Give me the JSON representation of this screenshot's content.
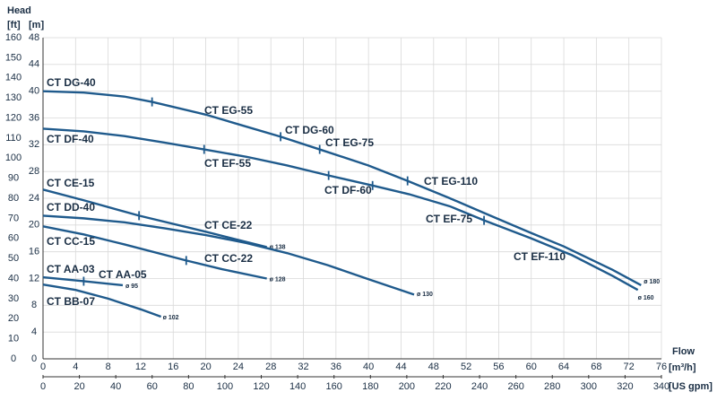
{
  "chart_data": {
    "type": "line",
    "y_label": "Head",
    "y2_unit": "[ft]",
    "y_unit": "[m]",
    "x_label": "Flow",
    "x_unit": "[m³/h]",
    "x2_unit": "[US gpm]",
    "xlim": [
      0,
      76
    ],
    "xticks": [
      0,
      4,
      8,
      12,
      16,
      20,
      24,
      28,
      32,
      36,
      40,
      44,
      48,
      52,
      56,
      60,
      64,
      68,
      72,
      76
    ],
    "x2lim": [
      0,
      340
    ],
    "x2ticks": [
      0,
      20,
      40,
      60,
      80,
      100,
      120,
      140,
      160,
      180,
      200,
      220,
      240,
      260,
      280,
      300,
      320,
      340
    ],
    "ylim": [
      0,
      48
    ],
    "yticks": [
      0,
      4,
      8,
      12,
      16,
      20,
      24,
      28,
      32,
      36,
      40,
      44,
      48
    ],
    "y2lim": [
      0,
      160
    ],
    "y2ticks": [
      0,
      10,
      20,
      30,
      40,
      50,
      60,
      70,
      80,
      90,
      100,
      110,
      120,
      130,
      140,
      150,
      160
    ],
    "grid": true,
    "color": "#1f5a8c",
    "series": [
      {
        "name": "ø 180",
        "x": [
          0,
          5,
          10,
          13.4,
          20,
          25,
          29.2,
          34,
          40,
          44.8,
          50,
          54.2,
          60,
          64,
          70,
          73.5
        ],
        "values": [
          40,
          39.8,
          39.2,
          38.4,
          36.5,
          34.7,
          33.2,
          31.3,
          28.9,
          26.6,
          24,
          21.8,
          18.8,
          16.8,
          13.3,
          11
        ],
        "markers": [
          13.4,
          29.2,
          34,
          44.8
        ]
      },
      {
        "name": "ø 160",
        "x": [
          0,
          5,
          10,
          15,
          19.8,
          25,
          30,
          35.1,
          40.5,
          45,
          50,
          54.2,
          60,
          65,
          70,
          73.1
        ],
        "values": [
          34.4,
          34,
          33.3,
          32.3,
          31.3,
          30.2,
          28.9,
          27.4,
          25.9,
          24.6,
          22.8,
          20.7,
          18,
          15.5,
          12.4,
          10.3
        ],
        "markers": [
          19.8,
          35.1,
          40.5,
          54.2
        ]
      },
      {
        "name": "ø 138",
        "x": [
          0,
          5,
          11.8,
          20,
          27.5
        ],
        "values": [
          25.3,
          23.7,
          21.4,
          19,
          16.7
        ],
        "markers": [
          11.8
        ]
      },
      {
        "name": "ø 130",
        "x": [
          0,
          5,
          10,
          15,
          20,
          25,
          30,
          35,
          40,
          45.6
        ],
        "values": [
          21.4,
          21,
          20.4,
          19.5,
          18.5,
          17.3,
          15.8,
          14,
          11.9,
          9.6
        ],
        "markers": []
      },
      {
        "name": "ø 128",
        "x": [
          0,
          5,
          10,
          17.6,
          22,
          27.5
        ],
        "values": [
          19.8,
          18.6,
          17.1,
          14.7,
          13.4,
          12
        ],
        "markers": [
          17.6
        ]
      },
      {
        "name": "ø 95",
        "x": [
          0,
          5,
          9.8
        ],
        "values": [
          12.2,
          11.6,
          11
        ],
        "markers": [
          5
        ]
      },
      {
        "name": "ø 102",
        "x": [
          0,
          4,
          8,
          12,
          14.5
        ],
        "values": [
          11.1,
          10.3,
          9,
          7.4,
          6.3
        ],
        "markers": []
      }
    ],
    "annotations": [
      "CT DG-40",
      "CT EG-55",
      "CT DG-60",
      "CT EG-75",
      "CT EG-110",
      "CT DF-40",
      "CT EF-55",
      "CT DF-60",
      "CT EF-75",
      "CT EF-110",
      "CT CE-15",
      "CT CE-22",
      "CT DD-40",
      "CT CC-15",
      "CT CC-22",
      "CT AA-03",
      "CT AA-05",
      "CT BB-07"
    ]
  }
}
